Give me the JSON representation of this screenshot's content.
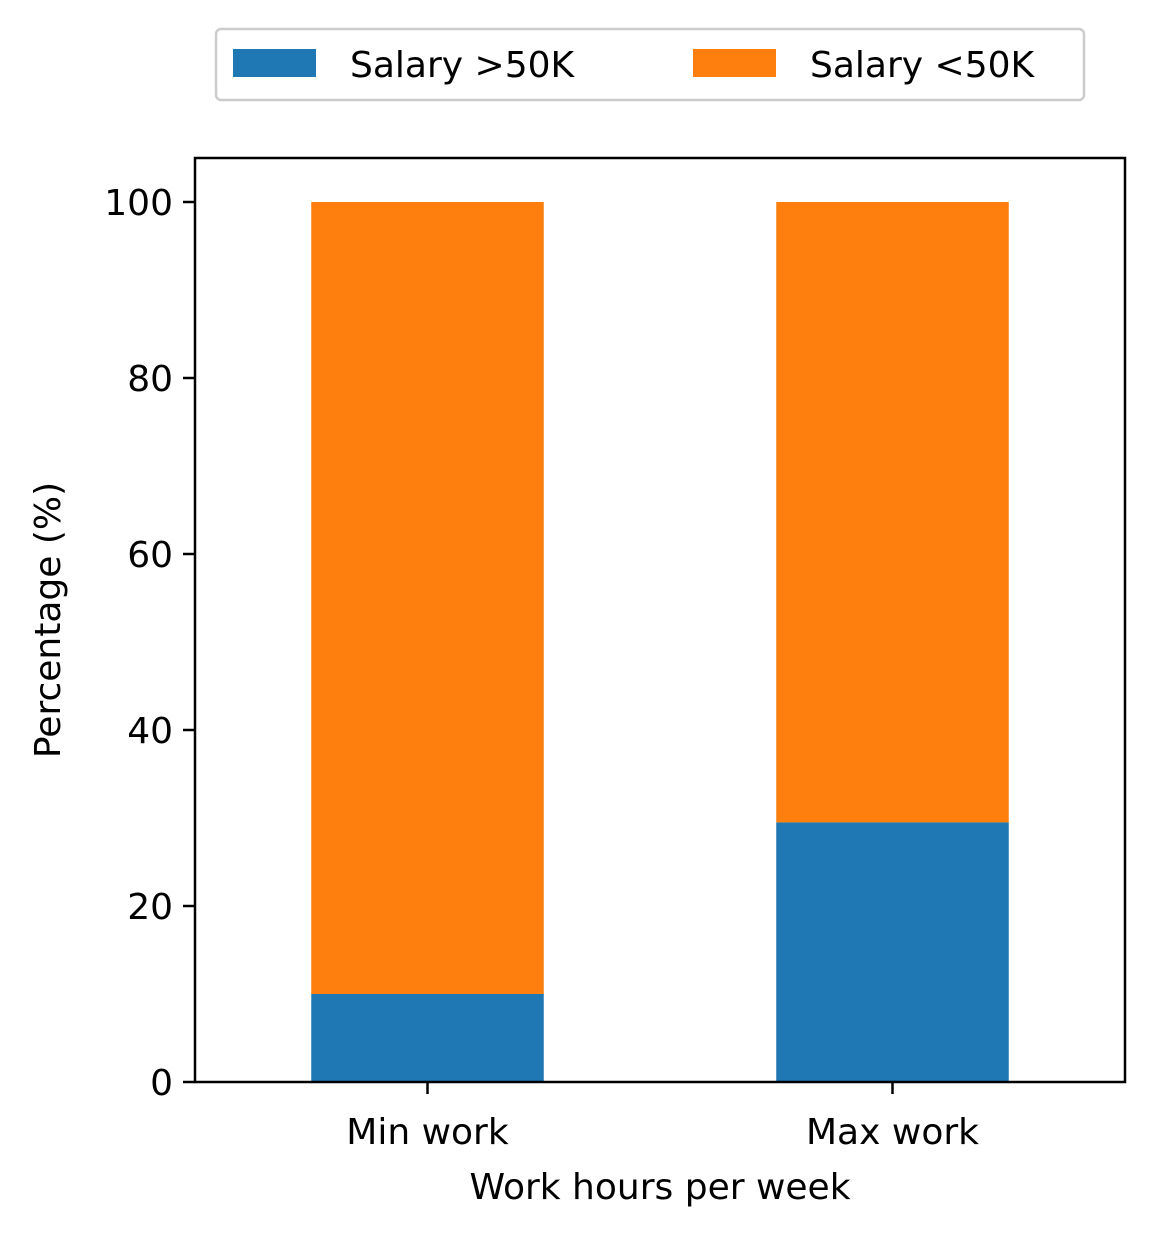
{
  "colors": {
    "series_above": "#1f77b4",
    "series_below": "#ff7f0e",
    "axis": "#000000",
    "legend_border": "#cccccc"
  },
  "chart_data": {
    "type": "bar",
    "stacked": true,
    "categories": [
      "Min work",
      "Max work"
    ],
    "series": [
      {
        "name": "Salary >50K",
        "values": [
          10.0,
          29.5
        ]
      },
      {
        "name": "Salary <50K",
        "values": [
          90.0,
          70.5
        ]
      }
    ],
    "title": "",
    "xlabel": "Work hours per week",
    "ylabel": "Percentage (%)",
    "ylim": [
      0,
      105
    ],
    "yticks": [
      0,
      20,
      40,
      60,
      80,
      100
    ],
    "grid": false,
    "legend_position": "top-center"
  }
}
